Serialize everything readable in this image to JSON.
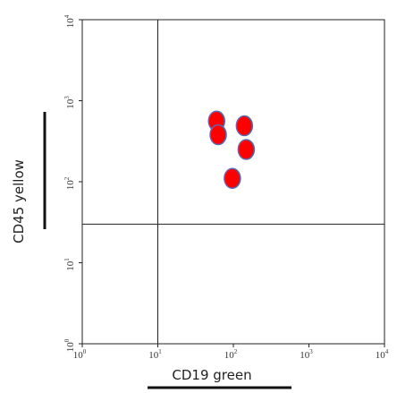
{
  "chart_data": {
    "type": "scatter",
    "title": "",
    "xlabel": "CD19 green",
    "ylabel": "CD45 yellow",
    "x_scale": "log",
    "y_scale": "log",
    "xlim": [
      1,
      10000
    ],
    "ylim": [
      1,
      10000
    ],
    "x_ticks": [
      {
        "base": "10",
        "exp": "0",
        "value": 1
      },
      {
        "base": "10",
        "exp": "1",
        "value": 10
      },
      {
        "base": "10",
        "exp": "2",
        "value": 100
      },
      {
        "base": "10",
        "exp": "3",
        "value": 1000
      },
      {
        "base": "10",
        "exp": "4",
        "value": 10000
      }
    ],
    "y_ticks": [
      {
        "base": "10",
        "exp": "0",
        "value": 1
      },
      {
        "base": "10",
        "exp": "1",
        "value": 10
      },
      {
        "base": "10",
        "exp": "2",
        "value": 100
      },
      {
        "base": "10",
        "exp": "3",
        "value": 1000
      },
      {
        "base": "10",
        "exp": "4",
        "value": 10000
      }
    ],
    "gates": {
      "x": 10,
      "y": 30
    },
    "points": [
      {
        "x": 60,
        "y": 560
      },
      {
        "x": 63,
        "y": 380
      },
      {
        "x": 140,
        "y": 490
      },
      {
        "x": 148,
        "y": 250
      },
      {
        "x": 97,
        "y": 110
      }
    ],
    "point_color": "#ff0000",
    "point_outline": "#5a6ab0",
    "grid": false
  }
}
